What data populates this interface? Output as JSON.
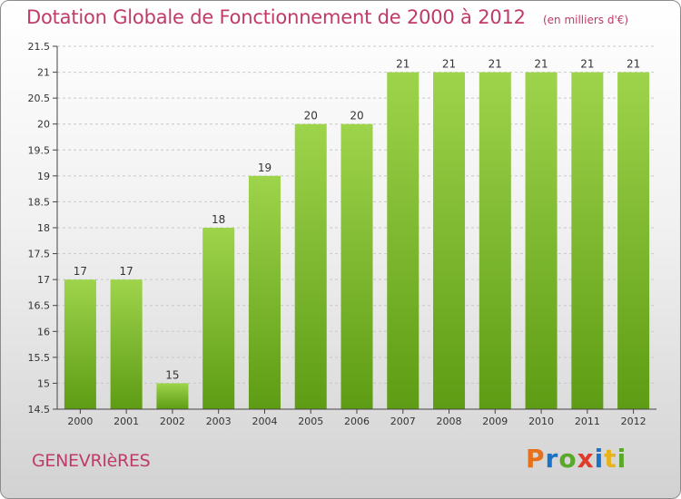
{
  "colors": {
    "title": "#c03a6a",
    "bar_top": "#9ed44c",
    "bar_bottom": "#5d9c14",
    "grid": "#c8c8c8",
    "axis": "#444444"
  },
  "header": {
    "title": "Dotation Globale de Fonctionnement de 2000 à 2012",
    "unit": "(en milliers d'€)"
  },
  "footer": {
    "city": "GENEVRIèRES",
    "brand": "Proxiti",
    "brand_colors": [
      "#e8701a",
      "#1a73c8",
      "#5aa82a",
      "#e23a2a",
      "#1a73c8",
      "#e8b21a",
      "#5aa82a"
    ]
  },
  "chart_data": {
    "type": "bar",
    "title": "Dotation Globale de Fonctionnement de 2000 à 2012",
    "subtitle": "(en milliers d'€)",
    "categories": [
      "2000",
      "2001",
      "2002",
      "2003",
      "2004",
      "2005",
      "2006",
      "2007",
      "2008",
      "2009",
      "2010",
      "2011",
      "2012"
    ],
    "values": [
      17,
      17,
      15,
      18,
      19,
      20,
      20,
      21,
      21,
      21,
      21,
      21,
      21
    ],
    "data_labels": [
      "17",
      "17",
      "15",
      "18",
      "19",
      "20",
      "20",
      "21",
      "21",
      "21",
      "21",
      "21",
      "21"
    ],
    "ylim": [
      14.5,
      21.5
    ],
    "yticks": [
      14.5,
      15,
      15.5,
      16,
      16.5,
      17,
      17.5,
      18,
      18.5,
      19,
      19.5,
      20,
      20.5,
      21,
      21.5
    ],
    "ytick_labels": [
      "14.5",
      "15",
      "15.5",
      "16",
      "16.5",
      "17",
      "17.5",
      "18",
      "18.5",
      "19",
      "19.5",
      "20",
      "20.5",
      "21",
      "21.5"
    ],
    "xlabel": "",
    "ylabel": "",
    "grid": true
  }
}
